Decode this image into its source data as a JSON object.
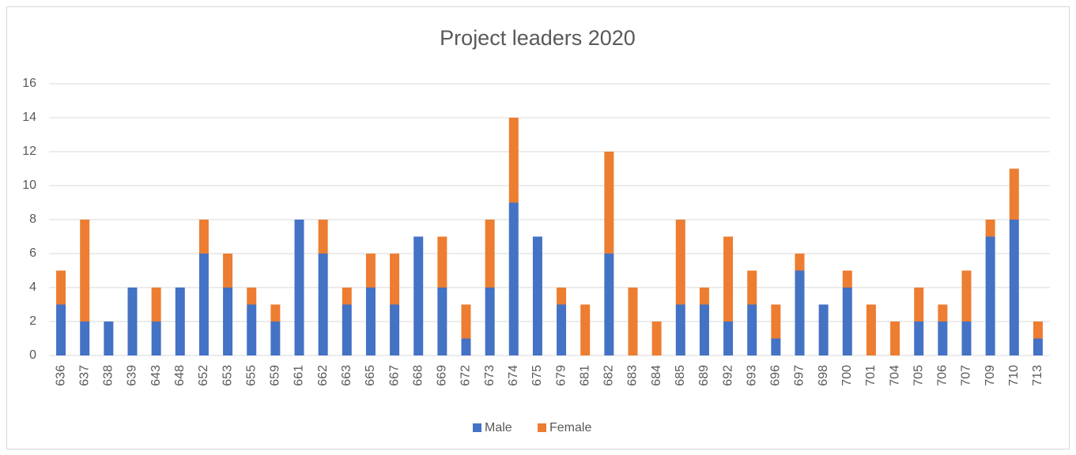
{
  "chart_data": {
    "type": "bar",
    "stacked": true,
    "title": "Project leaders 2020",
    "categories": [
      "636",
      "637",
      "638",
      "639",
      "643",
      "648",
      "652",
      "653",
      "655",
      "659",
      "661",
      "662",
      "663",
      "665",
      "667",
      "668",
      "669",
      "672",
      "673",
      "674",
      "675",
      "679",
      "681",
      "682",
      "683",
      "684",
      "685",
      "689",
      "692",
      "693",
      "696",
      "697",
      "698",
      "700",
      "701",
      "704",
      "705",
      "706",
      "707",
      "709",
      "710",
      "713"
    ],
    "series": [
      {
        "name": "Male",
        "color": "#4472c4",
        "values": [
          3,
          2,
          2,
          4,
          2,
          4,
          6,
          4,
          3,
          2,
          8,
          6,
          3,
          4,
          3,
          7,
          4,
          1,
          4,
          9,
          7,
          3,
          0,
          6,
          0,
          0,
          3,
          3,
          2,
          3,
          1,
          5,
          3,
          4,
          0,
          0,
          2,
          2,
          2,
          7,
          8,
          1
        ]
      },
      {
        "name": "Female",
        "color": "#ed7d31",
        "values": [
          2,
          6,
          0,
          0,
          2,
          0,
          2,
          2,
          1,
          1,
          0,
          2,
          1,
          2,
          3,
          0,
          3,
          2,
          4,
          5,
          0,
          1,
          3,
          6,
          4,
          2,
          5,
          1,
          5,
          2,
          2,
          1,
          0,
          1,
          3,
          2,
          2,
          1,
          3,
          1,
          3,
          1
        ]
      }
    ],
    "ylim": [
      0,
      16
    ],
    "yticks": [
      0,
      2,
      4,
      6,
      8,
      10,
      12,
      14,
      16
    ],
    "grid": true,
    "legend": "bottom"
  }
}
